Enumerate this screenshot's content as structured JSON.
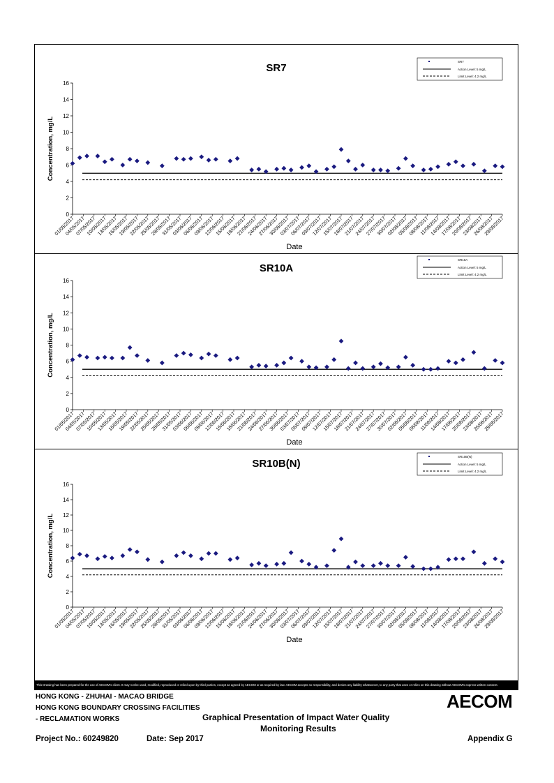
{
  "dates": [
    "01/05/2017",
    "04/05/2017",
    "07/05/2017",
    "10/05/2017",
    "13/05/2017",
    "16/05/2017",
    "19/05/2017",
    "22/05/2017",
    "25/05/2017",
    "28/05/2017",
    "31/05/2017",
    "03/06/2017",
    "06/06/2017",
    "09/06/2017",
    "12/06/2017",
    "15/06/2017",
    "18/06/2017",
    "21/06/2017",
    "24/06/2017",
    "27/06/2017",
    "30/06/2017",
    "03/07/2017",
    "06/07/2017",
    "09/07/2017",
    "12/07/2017",
    "15/07/2017",
    "18/07/2017",
    "21/07/2017",
    "24/07/2017",
    "27/07/2017",
    "30/07/2017",
    "02/08/2017",
    "05/08/2017",
    "08/08/2017",
    "11/08/2017",
    "14/08/2017",
    "17/08/2017",
    "20/08/2017",
    "23/08/2017",
    "26/08/2017",
    "29/08/2017"
  ],
  "chart_data": [
    {
      "type": "scatter",
      "title": "SR7",
      "xlabel": "Date",
      "ylabel": "Concentration, mg/L",
      "ylim": [
        0,
        16
      ],
      "yticks": [
        "0",
        "2",
        "4",
        "6",
        "8",
        "10",
        "12",
        "14",
        "16"
      ],
      "legend_position": "top-right",
      "series": [
        {
          "name": "SR7",
          "x": [
            "01/05/2017",
            "03/05/2017",
            "05/05/2017",
            "08/05/2017",
            "10/05/2017",
            "12/05/2017",
            "15/05/2017",
            "17/05/2017",
            "19/05/2017",
            "22/05/2017",
            "26/05/2017",
            "30/05/2017",
            "01/06/2017",
            "03/06/2017",
            "06/06/2017",
            "08/06/2017",
            "10/06/2017",
            "14/06/2017",
            "16/06/2017",
            "20/06/2017",
            "22/06/2017",
            "24/06/2017",
            "27/06/2017",
            "29/06/2017",
            "01/07/2017",
            "04/07/2017",
            "06/07/2017",
            "08/07/2017",
            "11/07/2017",
            "13/07/2017",
            "15/07/2017",
            "17/07/2017",
            "19/07/2017",
            "21/07/2017",
            "24/07/2017",
            "26/07/2017",
            "28/07/2017",
            "31/07/2017",
            "02/08/2017",
            "04/08/2017",
            "07/08/2017",
            "09/08/2017",
            "11/08/2017",
            "14/08/2017",
            "16/08/2017",
            "18/08/2017",
            "21/08/2017",
            "24/08/2017",
            "27/08/2017",
            "29/08/2017"
          ],
          "values": [
            6.2,
            6.9,
            7.1,
            7.1,
            6.4,
            6.7,
            6.0,
            6.7,
            6.5,
            6.3,
            5.9,
            6.8,
            6.7,
            6.8,
            7.0,
            6.6,
            6.7,
            6.5,
            6.8,
            5.4,
            5.5,
            5.2,
            5.5,
            5.6,
            5.4,
            5.7,
            5.9,
            5.2,
            5.5,
            5.8,
            7.9,
            6.5,
            5.5,
            6.0,
            5.4,
            5.4,
            5.3,
            5.6,
            6.8,
            5.9,
            5.4,
            5.5,
            5.8,
            6.1,
            6.4,
            5.9,
            6.1,
            5.3,
            5.9,
            5.8
          ]
        },
        {
          "name": "Action Level: 5 mg/L",
          "constant": 5,
          "style": "solid"
        },
        {
          "name": "Limit Level: 4.2 mg/L",
          "constant": 4.2,
          "style": "dashed"
        }
      ]
    },
    {
      "type": "scatter",
      "title": "SR10A",
      "xlabel": "Date",
      "ylabel": "Concentration, mg/L",
      "ylim": [
        0,
        16
      ],
      "yticks": [
        "0",
        "2",
        "4",
        "6",
        "8",
        "10",
        "12",
        "14",
        "16"
      ],
      "legend_position": "top-right",
      "series": [
        {
          "name": "SR10A",
          "x": [
            "01/05/2017",
            "03/05/2017",
            "05/05/2017",
            "08/05/2017",
            "10/05/2017",
            "12/05/2017",
            "15/05/2017",
            "17/05/2017",
            "19/05/2017",
            "22/05/2017",
            "26/05/2017",
            "30/05/2017",
            "01/06/2017",
            "03/06/2017",
            "06/06/2017",
            "08/06/2017",
            "10/06/2017",
            "14/06/2017",
            "16/06/2017",
            "20/06/2017",
            "22/06/2017",
            "24/06/2017",
            "27/06/2017",
            "29/06/2017",
            "01/07/2017",
            "04/07/2017",
            "06/07/2017",
            "08/07/2017",
            "11/07/2017",
            "13/07/2017",
            "15/07/2017",
            "17/07/2017",
            "19/07/2017",
            "21/07/2017",
            "24/07/2017",
            "26/07/2017",
            "28/07/2017",
            "31/07/2017",
            "02/08/2017",
            "04/08/2017",
            "07/08/2017",
            "09/08/2017",
            "11/08/2017",
            "14/08/2017",
            "16/08/2017",
            "18/08/2017",
            "21/08/2017",
            "24/08/2017",
            "27/08/2017",
            "29/08/2017"
          ],
          "values": [
            6.2,
            6.7,
            6.5,
            6.4,
            6.5,
            6.4,
            6.4,
            7.7,
            6.7,
            6.1,
            5.8,
            6.7,
            7.0,
            6.8,
            6.4,
            6.9,
            6.7,
            6.2,
            6.4,
            5.3,
            5.5,
            5.4,
            5.5,
            5.8,
            6.4,
            6.0,
            5.3,
            5.2,
            5.3,
            6.2,
            8.5,
            5.1,
            5.8,
            5.1,
            5.3,
            5.7,
            5.2,
            5.3,
            6.5,
            5.5,
            5.0,
            5.0,
            5.1,
            6.0,
            5.8,
            6.2,
            7.1,
            5.1,
            6.1,
            5.8
          ]
        },
        {
          "name": "Action Level: 5 mg/L",
          "constant": 5,
          "style": "solid"
        },
        {
          "name": "Limit Level: 4.2 mg/L",
          "constant": 4.2,
          "style": "dashed"
        }
      ]
    },
    {
      "type": "scatter",
      "title": "SR10B(N)",
      "xlabel": "Date",
      "ylabel": "Concentration, mg/L",
      "ylim": [
        0,
        16
      ],
      "yticks": [
        "0",
        "2",
        "4",
        "6",
        "8",
        "10",
        "12",
        "14",
        "16"
      ],
      "legend_position": "top-right",
      "series": [
        {
          "name": "SR10B(N)",
          "x": [
            "01/05/2017",
            "03/05/2017",
            "05/05/2017",
            "08/05/2017",
            "10/05/2017",
            "12/05/2017",
            "15/05/2017",
            "17/05/2017",
            "19/05/2017",
            "22/05/2017",
            "26/05/2017",
            "30/05/2017",
            "01/06/2017",
            "03/06/2017",
            "06/06/2017",
            "08/06/2017",
            "10/06/2017",
            "14/06/2017",
            "16/06/2017",
            "20/06/2017",
            "22/06/2017",
            "24/06/2017",
            "27/06/2017",
            "29/06/2017",
            "01/07/2017",
            "04/07/2017",
            "06/07/2017",
            "08/07/2017",
            "11/07/2017",
            "13/07/2017",
            "15/07/2017",
            "17/07/2017",
            "19/07/2017",
            "21/07/2017",
            "24/07/2017",
            "26/07/2017",
            "28/07/2017",
            "31/07/2017",
            "02/08/2017",
            "04/08/2017",
            "07/08/2017",
            "09/08/2017",
            "11/08/2017",
            "14/08/2017",
            "16/08/2017",
            "18/08/2017",
            "21/08/2017",
            "24/08/2017",
            "27/08/2017",
            "29/08/2017"
          ],
          "values": [
            6.4,
            6.9,
            6.7,
            6.3,
            6.6,
            6.4,
            6.7,
            7.5,
            7.2,
            6.2,
            5.9,
            6.7,
            7.1,
            6.7,
            6.3,
            7.0,
            7.0,
            6.2,
            6.4,
            5.5,
            5.7,
            5.4,
            5.6,
            5.7,
            7.1,
            6.0,
            5.6,
            5.2,
            5.4,
            7.4,
            8.9,
            5.2,
            5.9,
            5.4,
            5.4,
            5.7,
            5.4,
            5.4,
            6.5,
            5.3,
            5.0,
            5.0,
            5.2,
            6.2,
            6.3,
            6.3,
            7.2,
            5.7,
            6.3,
            5.9
          ]
        },
        {
          "name": "Action Level: 5 mg/L",
          "constant": 5,
          "style": "solid"
        },
        {
          "name": "Limit Level: 4.2 mg/L",
          "constant": 4.2,
          "style": "dashed"
        }
      ]
    }
  ],
  "footer": {
    "disclaimer": "This Drawing has been prepared for the use of AECOM's client. It may not be used, modified, reproduced or relied upon by third parties, except as agreed by AECOM or as required by law. AECOM accepts no responsibility, and denies any liability whatsoever, to any party that uses or relies on this drawing without AECOM's express written consent.",
    "project_line1": "HONG KONG - ZHUHAI - MACAO BRIDGE",
    "project_line2": "HONG KONG BOUNDARY CROSSING FACILITIES",
    "project_line3": "- RECLAMATION WORKS",
    "title_line1": "Graphical Presentation of Impact Water Quality",
    "title_line2": "Monitoring Results",
    "project_no": "Project No.: 60249820",
    "date": "Date: Sep 2017",
    "appendix": "Appendix G",
    "logo": "AECOM"
  }
}
